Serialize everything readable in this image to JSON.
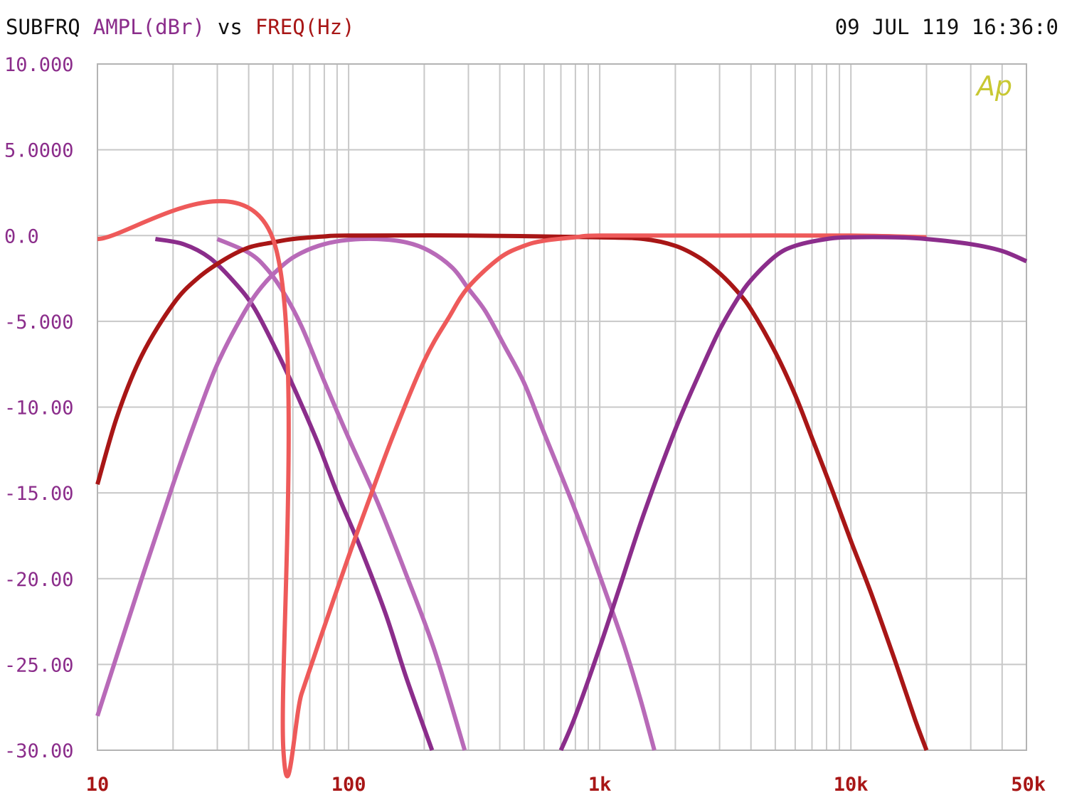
{
  "header": {
    "sub": "SUBFRQ",
    "ampl": "AMPL(dBr)",
    "vs": "vs",
    "freq": "FREQ(Hz)",
    "date": "09 JUL 119 16:36:0"
  },
  "logo": "Ap",
  "colors": {
    "text": "#111111",
    "ampl": "#8b2d8b",
    "freq": "#a81616",
    "grid": "#c8c8c8",
    "frame": "#b4b4b4",
    "logo": "#c8c832"
  },
  "chart_data": {
    "type": "line",
    "xscale": "log",
    "xlim": [
      10,
      50000
    ],
    "ylim": [
      -30,
      10
    ],
    "grid": true,
    "x_tick_labels": [
      {
        "value": 10,
        "label": "10"
      },
      {
        "value": 100,
        "label": "100"
      },
      {
        "value": 1000,
        "label": "1k"
      },
      {
        "value": 10000,
        "label": "10k"
      },
      {
        "value": 50000,
        "label": "50k"
      }
    ],
    "y_tick_labels": [
      {
        "value": 10,
        "label": "10.000"
      },
      {
        "value": 5,
        "label": "5.0000"
      },
      {
        "value": 0,
        "label": "0.0"
      },
      {
        "value": -5,
        "label": "-5.000"
      },
      {
        "value": -10,
        "label": "-10.00"
      },
      {
        "value": -15,
        "label": "-15.00"
      },
      {
        "value": -20,
        "label": "-20.00"
      },
      {
        "value": -25,
        "label": "-25.00"
      },
      {
        "value": -30,
        "label": "-30.00"
      }
    ],
    "series": [
      {
        "color": "#8b2d8b",
        "x": [
          17,
          22,
          28,
          35,
          42,
          52,
          62,
          75,
          90,
          110,
          140,
          170,
          215
        ],
        "y": [
          -0.2,
          -0.5,
          -1.3,
          -2.7,
          -4.2,
          -6.8,
          -9.2,
          -12.0,
          -15.0,
          -18.0,
          -22.0,
          -25.8,
          -30.0
        ]
      },
      {
        "color": "#b86ab8",
        "x": [
          30,
          40,
          47,
          55,
          65,
          80,
          100,
          130,
          170,
          220,
          290
        ],
        "y": [
          -0.2,
          -1.0,
          -1.9,
          -3.3,
          -5.3,
          -8.5,
          -11.8,
          -15.5,
          -19.8,
          -24.2,
          -30.0
        ]
      },
      {
        "color": "#b86ab8",
        "x": [
          10,
          15,
          20,
          25,
          30,
          38,
          45,
          55,
          65,
          80,
          100,
          130,
          170,
          210,
          260,
          300,
          350,
          420,
          500,
          600,
          750,
          900,
          1050,
          1250,
          1450,
          1650
        ],
        "y": [
          -28.0,
          -20.0,
          -14.5,
          -10.5,
          -7.5,
          -4.6,
          -3.0,
          -1.7,
          -1.0,
          -0.5,
          -0.25,
          -0.2,
          -0.4,
          -0.9,
          -1.9,
          -3.1,
          -4.4,
          -6.5,
          -8.6,
          -11.5,
          -15.0,
          -18.0,
          -20.7,
          -23.9,
          -27.0,
          -30.0
        ]
      },
      {
        "color": "#a81616",
        "x": [
          10,
          12,
          15,
          20,
          25,
          32,
          40,
          50,
          60,
          80,
          100,
          300,
          1000,
          1500,
          2000,
          2500,
          3000,
          3500,
          4000,
          5000,
          6000,
          7000,
          8500,
          10000,
          12000,
          15000,
          18000,
          20000
        ],
        "y": [
          -14.5,
          -10.5,
          -7.0,
          -4.0,
          -2.5,
          -1.4,
          -0.7,
          -0.4,
          -0.2,
          -0.05,
          0.0,
          0.0,
          -0.1,
          -0.2,
          -0.6,
          -1.3,
          -2.2,
          -3.2,
          -4.3,
          -6.8,
          -9.3,
          -11.8,
          -15.0,
          -17.8,
          -20.8,
          -24.8,
          -28.2,
          -30.0
        ]
      },
      {
        "color": "#ee5a5a",
        "x": [
          10,
          50,
          55,
          65,
          80,
          100,
          120,
          150,
          200,
          250,
          300,
          400,
          500,
          600,
          800,
          1000,
          3000,
          10000,
          20000
        ],
        "y": [
          -0.2,
          -0.2,
          -30.0,
          -26.7,
          -22.8,
          -18.7,
          -15.5,
          -11.7,
          -7.3,
          -4.8,
          -3.0,
          -1.3,
          -0.6,
          -0.3,
          -0.1,
          0.0,
          0.0,
          0.0,
          -0.1
        ]
      },
      {
        "color": "#8b2d8b",
        "x": [
          700,
          800,
          1000,
          1200,
          1500,
          2000,
          2500,
          3000,
          3500,
          4000,
          5000,
          6000,
          8000,
          10000,
          15000,
          20000,
          30000,
          40000,
          50000
        ],
        "y": [
          -30.0,
          -28.0,
          -24.0,
          -20.5,
          -16.2,
          -11.3,
          -8.0,
          -5.5,
          -3.8,
          -2.6,
          -1.2,
          -0.6,
          -0.2,
          -0.1,
          -0.1,
          -0.2,
          -0.5,
          -0.9,
          -1.5
        ]
      }
    ]
  }
}
